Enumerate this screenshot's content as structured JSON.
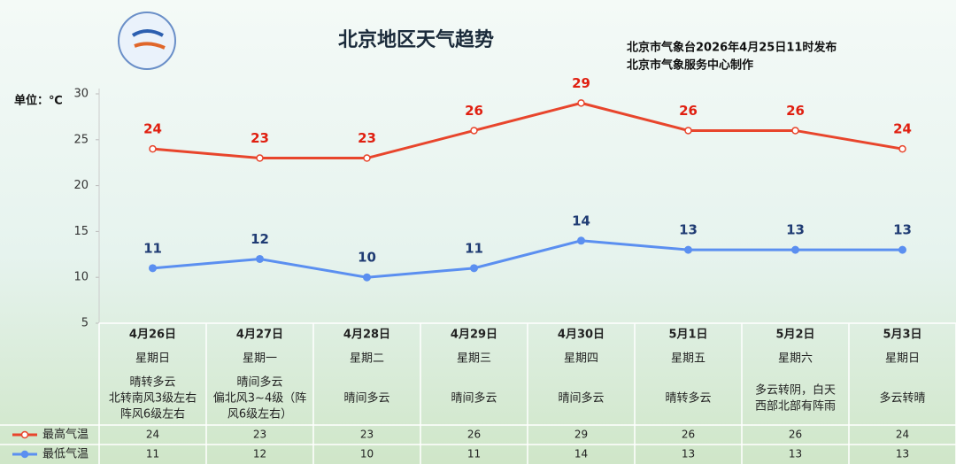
{
  "chart_data": {
    "type": "line",
    "title": "北京地区天气趋势",
    "subtitle": [
      "北京市气象台2026年4月25日11时发布",
      "北京市气象服务中心制作"
    ],
    "y_label": "单位：℃",
    "categories": [
      "4月26日",
      "4月27日",
      "4月28日",
      "4月29日",
      "4月30日",
      "5月1日",
      "5月2日",
      "5月3日"
    ],
    "weekdays": [
      "星期日",
      "星期一",
      "星期二",
      "星期三",
      "星期四",
      "星期五",
      "星期六",
      "星期日"
    ],
    "weather": [
      [
        "晴转多云",
        "北转南风3级左右",
        "阵风6级左右"
      ],
      [
        "晴间多云",
        "偏北风3~4级（阵",
        "风6级左右）"
      ],
      [
        "晴间多云"
      ],
      [
        "晴间多云"
      ],
      [
        "晴间多云"
      ],
      [
        "晴转多云"
      ],
      [
        "多云转阴，白天",
        "西部北部有阵雨"
      ],
      [
        "多云转晴"
      ]
    ],
    "series": [
      {
        "name": "最高气温",
        "color": "#e8452c",
        "values": [
          24,
          23,
          23,
          26,
          29,
          26,
          26,
          24
        ]
      },
      {
        "name": "最低气温",
        "color": "#5b8ff0",
        "values": [
          11,
          12,
          10,
          11,
          14,
          13,
          13,
          13
        ]
      }
    ],
    "ylim": [
      5,
      30
    ],
    "yticks": [
      5,
      10,
      15,
      20,
      25,
      30
    ]
  }
}
